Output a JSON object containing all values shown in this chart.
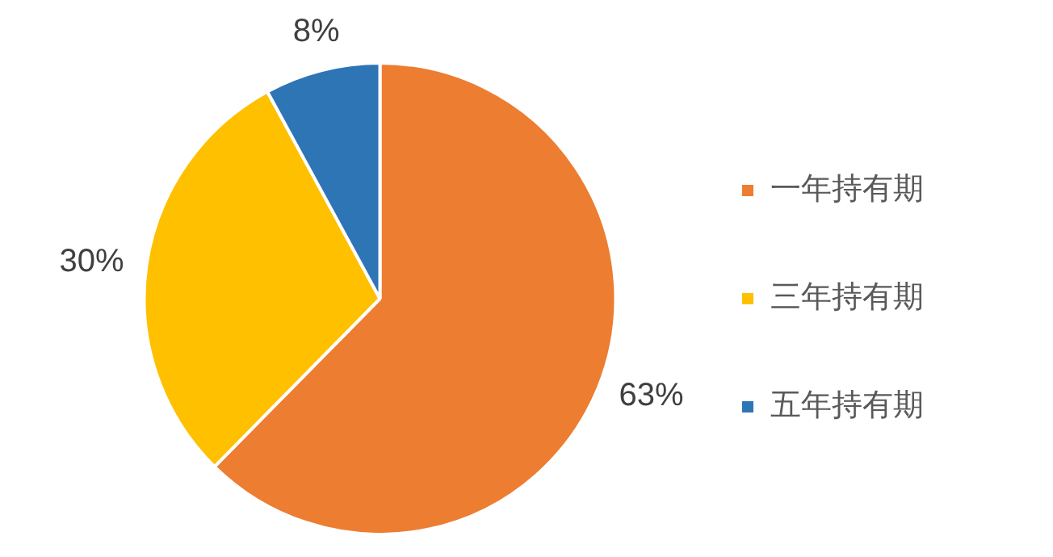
{
  "chart_data": {
    "type": "pie",
    "categories": [
      "一年持有期",
      "三年持有期",
      "五年持有期"
    ],
    "values": [
      63,
      30,
      8
    ],
    "value_labels": [
      "63%",
      "30%",
      "8%"
    ],
    "colors": [
      "#ed7d31",
      "#ffc000",
      "#2e75b6"
    ],
    "legend": "right"
  }
}
